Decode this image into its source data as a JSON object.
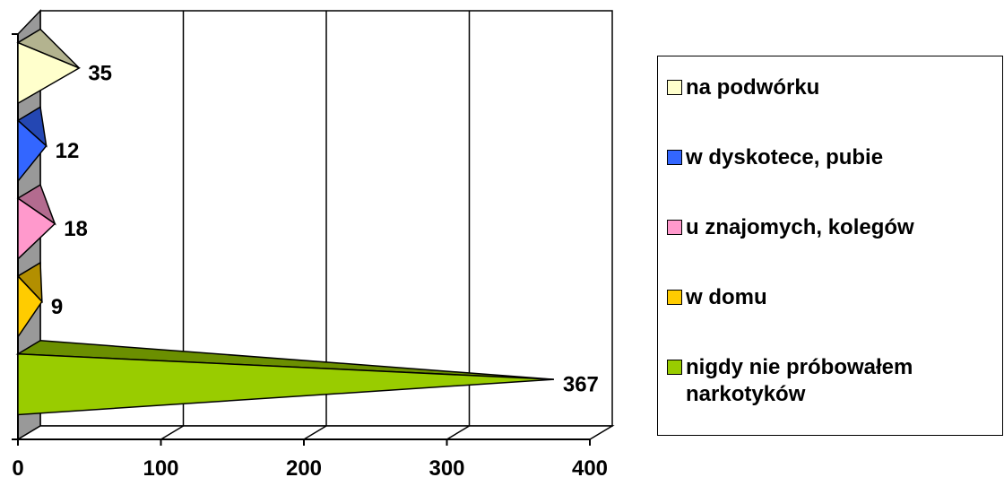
{
  "chart_data": {
    "type": "bar",
    "orientation": "horizontal",
    "style": "3d-cone",
    "categories": [
      "nigdy nie próbowałem narkotyków",
      "w domu",
      "u znajomych, kolegów",
      "w dyskotece, pubie",
      "na podwórku"
    ],
    "values": [
      367,
      9,
      18,
      12,
      35
    ],
    "data_labels": [
      "367",
      "9",
      "18",
      "12",
      "35"
    ],
    "colors": [
      "#99cc00",
      "#ffcc00",
      "#ff99cc",
      "#3366ff",
      "#ffffcc"
    ],
    "xlim": [
      0,
      400
    ],
    "x_ticks": [
      0,
      100,
      200,
      300,
      400
    ],
    "x_tick_labels": [
      "0",
      "100",
      "200",
      "300",
      "400"
    ],
    "grid": true,
    "legend_position": "right",
    "legend": [
      {
        "label": "na podwórku",
        "color": "#ffffcc"
      },
      {
        "label": "w dyskotece, pubie",
        "color": "#3366ff"
      },
      {
        "label": "u znajomych, kolegów",
        "color": "#ff99cc"
      },
      {
        "label": "w domu",
        "color": "#ffcc00"
      },
      {
        "label": "nigdy nie próbowałem narkotyków",
        "color": "#99cc00"
      }
    ]
  }
}
